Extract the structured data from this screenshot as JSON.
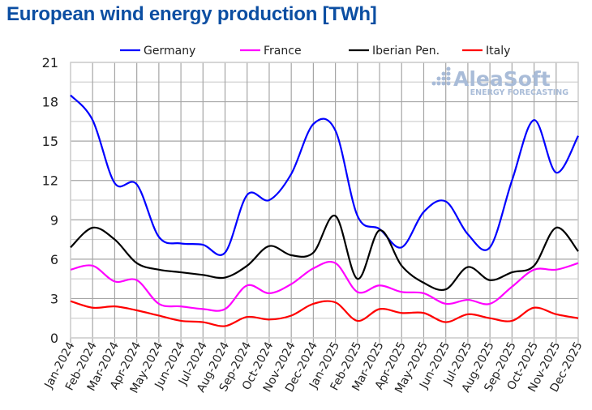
{
  "chart_data": {
    "type": "line",
    "title": "European wind energy production [TWh]",
    "xlabel": "",
    "ylabel": "",
    "ylim": [
      0,
      21
    ],
    "yticks": [
      0,
      3,
      6,
      9,
      12,
      15,
      18,
      21
    ],
    "grid": true,
    "legend_position": "top",
    "watermark": {
      "brand": "AleaSoft",
      "tagline": "ENERGY FORECASTING"
    },
    "categories": [
      "Jan-2024",
      "Feb-2024",
      "Mar-2024",
      "Apr-2024",
      "May-2024",
      "Jun-2024",
      "Jul-2024",
      "Aug-2024",
      "Sep-2024",
      "Oct-2024",
      "Nov-2024",
      "Dec-2024",
      "Jan-2025",
      "Feb-2025",
      "Mar-2025",
      "Apr-2025",
      "May-2025",
      "Jun-2025",
      "Jul-2025",
      "Aug-2025",
      "Sep-2025",
      "Oct-2025",
      "Nov-2025",
      "Dec-2025"
    ],
    "series": [
      {
        "name": "Germany",
        "color": "#0000ff",
        "values": [
          18.5,
          16.6,
          11.8,
          11.7,
          7.7,
          7.2,
          7.1,
          6.5,
          10.9,
          10.5,
          12.5,
          16.3,
          15.8,
          9.3,
          8.3,
          6.9,
          9.6,
          10.4,
          7.9,
          6.9,
          12.0,
          16.6,
          12.6,
          15.4
        ]
      },
      {
        "name": "France",
        "color": "#ff00ff",
        "values": [
          5.2,
          5.5,
          4.3,
          4.4,
          2.6,
          2.4,
          2.2,
          2.2,
          4.0,
          3.4,
          4.1,
          5.3,
          5.7,
          3.5,
          4.0,
          3.5,
          3.4,
          2.6,
          2.9,
          2.6,
          3.9,
          5.2,
          5.2,
          5.7
        ]
      },
      {
        "name": "Iberian Pen.",
        "color": "#000000",
        "values": [
          6.9,
          8.4,
          7.5,
          5.7,
          5.2,
          5.0,
          4.8,
          4.6,
          5.5,
          7.0,
          6.3,
          6.5,
          9.3,
          4.5,
          8.2,
          5.5,
          4.2,
          3.7,
          5.4,
          4.4,
          5.0,
          5.5,
          8.4,
          6.6
        ]
      },
      {
        "name": "Italy",
        "color": "#ff0000",
        "values": [
          2.8,
          2.3,
          2.4,
          2.1,
          1.7,
          1.3,
          1.2,
          0.9,
          1.6,
          1.4,
          1.7,
          2.6,
          2.7,
          1.3,
          2.2,
          1.9,
          1.9,
          1.2,
          1.8,
          1.5,
          1.3,
          2.3,
          1.8,
          1.5
        ]
      }
    ]
  }
}
